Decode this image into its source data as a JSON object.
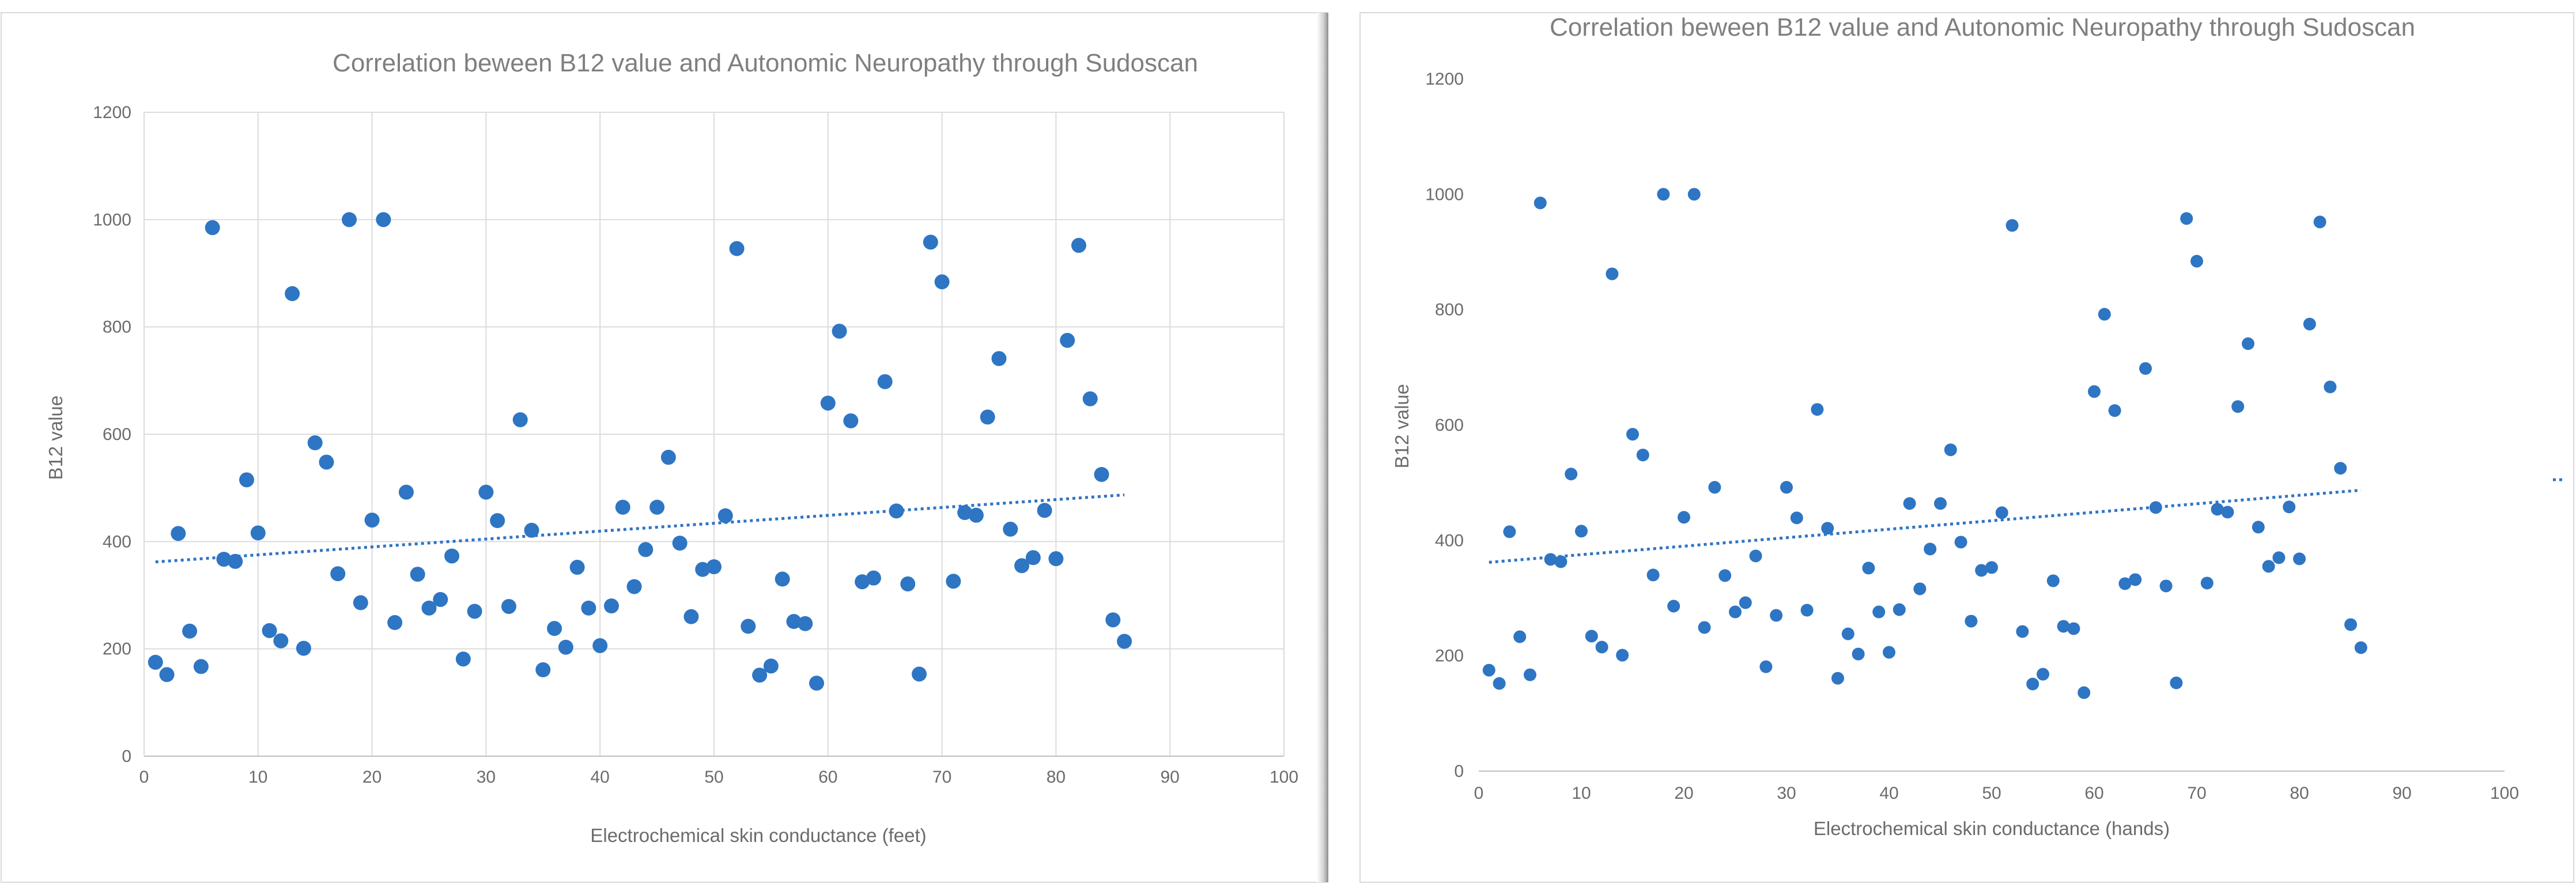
{
  "chart_data": [
    {
      "type": "scatter",
      "title": "Correlation beween B12 value and Autonomic Neuropathy through Sudoscan",
      "xlabel": "Electrochemical skin conductance (feet)",
      "ylabel": "B12 value",
      "xlim": [
        0,
        100
      ],
      "ylim": [
        0,
        1200
      ],
      "xticks": [
        "0",
        "10",
        "20",
        "30",
        "40",
        "50",
        "60",
        "70",
        "80",
        "90",
        "100"
      ],
      "yticks": [
        "0",
        "200",
        "400",
        "600",
        "800",
        "1000",
        "1200"
      ],
      "grid": true,
      "trendline": {
        "style": "dotted",
        "x": [
          1,
          86
        ],
        "y": [
          362,
          487
        ]
      },
      "points": [
        [
          1,
          175
        ],
        [
          2,
          152
        ],
        [
          3,
          415
        ],
        [
          4,
          233
        ],
        [
          5,
          167
        ],
        [
          6,
          985
        ],
        [
          7,
          367
        ],
        [
          8,
          363
        ],
        [
          9,
          515
        ],
        [
          10,
          416
        ],
        [
          11,
          234
        ],
        [
          12,
          215
        ],
        [
          13,
          862
        ],
        [
          14,
          201
        ],
        [
          15,
          584
        ],
        [
          16,
          548
        ],
        [
          17,
          340
        ],
        [
          18,
          1000
        ],
        [
          19,
          286
        ],
        [
          20,
          440
        ],
        [
          21,
          1000
        ],
        [
          22,
          249
        ],
        [
          23,
          492
        ],
        [
          24,
          339
        ],
        [
          25,
          276
        ],
        [
          26,
          292
        ],
        [
          27,
          373
        ],
        [
          28,
          181
        ],
        [
          29,
          270
        ],
        [
          30,
          492
        ],
        [
          31,
          439
        ],
        [
          32,
          279
        ],
        [
          33,
          627
        ],
        [
          34,
          421
        ],
        [
          35,
          161
        ],
        [
          36,
          238
        ],
        [
          37,
          203
        ],
        [
          38,
          352
        ],
        [
          39,
          276
        ],
        [
          40,
          206
        ],
        [
          41,
          280
        ],
        [
          42,
          464
        ],
        [
          43,
          316
        ],
        [
          44,
          385
        ],
        [
          45,
          464
        ],
        [
          46,
          557
        ],
        [
          47,
          397
        ],
        [
          48,
          260
        ],
        [
          49,
          348
        ],
        [
          50,
          353
        ],
        [
          51,
          448
        ],
        [
          52,
          946
        ],
        [
          53,
          242
        ],
        [
          54,
          151
        ],
        [
          55,
          168
        ],
        [
          56,
          330
        ],
        [
          57,
          251
        ],
        [
          58,
          247
        ],
        [
          59,
          136
        ],
        [
          60,
          658
        ],
        [
          61,
          792
        ],
        [
          62,
          625
        ],
        [
          63,
          325
        ],
        [
          64,
          332
        ],
        [
          65,
          698
        ],
        [
          66,
          457
        ],
        [
          67,
          321
        ],
        [
          68,
          153
        ],
        [
          69,
          958
        ],
        [
          70,
          884
        ],
        [
          71,
          326
        ],
        [
          72,
          454
        ],
        [
          73,
          449
        ],
        [
          74,
          632
        ],
        [
          75,
          741
        ],
        [
          76,
          423
        ],
        [
          77,
          355
        ],
        [
          78,
          370
        ],
        [
          79,
          458
        ],
        [
          80,
          368
        ],
        [
          81,
          775
        ],
        [
          82,
          952
        ],
        [
          83,
          666
        ],
        [
          84,
          525
        ],
        [
          85,
          254
        ],
        [
          86,
          214
        ]
      ]
    },
    {
      "type": "scatter",
      "title": "Correlation beween B12 value and Autonomic Neuropathy through Sudoscan",
      "xlabel": "Electrochemical skin conductance (hands)",
      "ylabel": "B12 value",
      "xlim": [
        0,
        100
      ],
      "ylim": [
        0,
        1200
      ],
      "xticks": [
        "0",
        "10",
        "20",
        "30",
        "40",
        "50",
        "60",
        "70",
        "80",
        "90",
        "100"
      ],
      "yticks": [
        "0",
        "200",
        "400",
        "600",
        "800",
        "1000",
        "1200"
      ],
      "grid": false,
      "trendline": {
        "style": "dotted",
        "x": [
          1,
          86
        ],
        "y": [
          362,
          487
        ]
      },
      "points": [
        [
          1,
          175
        ],
        [
          2,
          152
        ],
        [
          3,
          415
        ],
        [
          4,
          233
        ],
        [
          5,
          167
        ],
        [
          6,
          985
        ],
        [
          7,
          367
        ],
        [
          8,
          363
        ],
        [
          9,
          515
        ],
        [
          10,
          416
        ],
        [
          11,
          234
        ],
        [
          12,
          215
        ],
        [
          13,
          862
        ],
        [
          14,
          201
        ],
        [
          15,
          584
        ],
        [
          16,
          548
        ],
        [
          17,
          340
        ],
        [
          18,
          1000
        ],
        [
          19,
          286
        ],
        [
          20,
          440
        ],
        [
          21,
          1000
        ],
        [
          22,
          249
        ],
        [
          23,
          492
        ],
        [
          24,
          339
        ],
        [
          25,
          276
        ],
        [
          26,
          292
        ],
        [
          27,
          373
        ],
        [
          28,
          181
        ],
        [
          29,
          270
        ],
        [
          30,
          492
        ],
        [
          31,
          439
        ],
        [
          32,
          279
        ],
        [
          33,
          627
        ],
        [
          34,
          421
        ],
        [
          35,
          161
        ],
        [
          36,
          238
        ],
        [
          37,
          203
        ],
        [
          38,
          352
        ],
        [
          39,
          276
        ],
        [
          40,
          206
        ],
        [
          41,
          280
        ],
        [
          42,
          464
        ],
        [
          43,
          316
        ],
        [
          44,
          385
        ],
        [
          45,
          464
        ],
        [
          46,
          557
        ],
        [
          47,
          397
        ],
        [
          48,
          260
        ],
        [
          49,
          348
        ],
        [
          50,
          353
        ],
        [
          51,
          448
        ],
        [
          52,
          946
        ],
        [
          53,
          242
        ],
        [
          54,
          151
        ],
        [
          55,
          168
        ],
        [
          56,
          330
        ],
        [
          57,
          251
        ],
        [
          58,
          247
        ],
        [
          59,
          136
        ],
        [
          60,
          658
        ],
        [
          61,
          792
        ],
        [
          62,
          625
        ],
        [
          63,
          325
        ],
        [
          64,
          332
        ],
        [
          65,
          698
        ],
        [
          66,
          457
        ],
        [
          67,
          321
        ],
        [
          68,
          153
        ],
        [
          69,
          958
        ],
        [
          70,
          884
        ],
        [
          71,
          326
        ],
        [
          72,
          454
        ],
        [
          73,
          449
        ],
        [
          74,
          632
        ],
        [
          75,
          741
        ],
        [
          76,
          423
        ],
        [
          77,
          355
        ],
        [
          78,
          370
        ],
        [
          79,
          458
        ],
        [
          80,
          368
        ],
        [
          81,
          775
        ],
        [
          82,
          952
        ],
        [
          83,
          666
        ],
        [
          84,
          525
        ],
        [
          85,
          254
        ],
        [
          86,
          214
        ]
      ]
    }
  ]
}
